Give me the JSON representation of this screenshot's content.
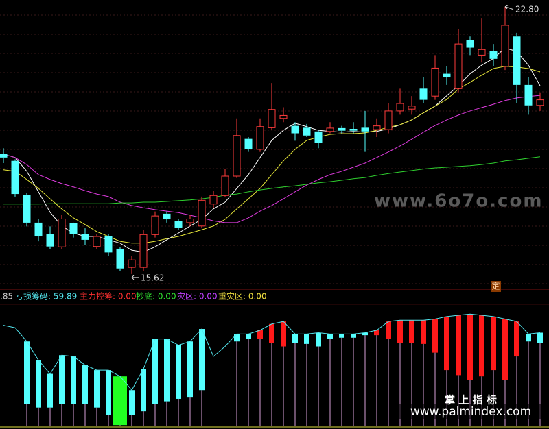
{
  "chart_data": [
    {
      "type": "candlestick",
      "categories": [
        null,
        null,
        null,
        null,
        null,
        null,
        null,
        null,
        null,
        null,
        null,
        null,
        null,
        null,
        null,
        null,
        null,
        null,
        null,
        null,
        null,
        null,
        null,
        null,
        null,
        null,
        null,
        null,
        null,
        null,
        null,
        null,
        null,
        null,
        null,
        null,
        null,
        null,
        null,
        null,
        null,
        null,
        null,
        null,
        null,
        null,
        null
      ],
      "open": [
        18.85,
        18.66,
        17.74,
        17.0,
        16.7,
        16.35,
        16.98,
        16.7,
        16.36,
        16.63,
        16.3,
        15.8,
        15.8,
        16.68,
        17.24,
        17.05,
        17.0,
        16.91,
        17.5,
        17.73,
        18.25,
        19.25,
        18.97,
        19.55,
        19.8,
        19.6,
        19.55,
        19.45,
        19.45,
        19.54,
        19.52,
        19.55,
        19.5,
        19.5,
        20.0,
        20.05,
        20.6,
        20.4,
        21.0,
        20.6,
        21.9,
        21.5,
        21.6,
        21.2,
        22.0,
        20.7,
        20.15
      ],
      "high": [
        19.0,
        18.7,
        17.8,
        17.1,
        16.9,
        17.2,
        17.0,
        16.85,
        16.7,
        16.7,
        16.35,
        16.1,
        16.8,
        17.3,
        17.3,
        17.1,
        17.2,
        17.7,
        17.85,
        18.45,
        19.8,
        19.3,
        19.8,
        20.75,
        20.1,
        19.7,
        19.65,
        19.5,
        19.7,
        19.6,
        19.7,
        20.0,
        19.8,
        20.2,
        20.6,
        20.4,
        20.9,
        21.5,
        21.2,
        22.2,
        22.0,
        22.5,
        21.8,
        22.8,
        22.1,
        20.9,
        20.5
      ],
      "low": [
        18.6,
        17.7,
        16.9,
        16.5,
        16.3,
        16.3,
        16.6,
        16.4,
        16.3,
        16.1,
        15.7,
        15.62,
        15.7,
        16.6,
        17.0,
        16.8,
        16.9,
        16.85,
        17.4,
        17.7,
        18.2,
        18.9,
        18.9,
        19.5,
        19.7,
        19.2,
        19.3,
        19.0,
        19.4,
        19.4,
        19.4,
        18.9,
        19.3,
        19.4,
        19.9,
        19.9,
        20.2,
        20.3,
        20.7,
        20.5,
        21.5,
        21.3,
        21.2,
        21.1,
        20.2,
        19.9,
        20.0
      ],
      "close": [
        18.75,
        17.77,
        17.0,
        16.63,
        16.36,
        17.1,
        16.7,
        16.54,
        16.63,
        16.2,
        15.77,
        16.0,
        16.68,
        17.18,
        17.09,
        16.87,
        17.1,
        17.6,
        17.73,
        18.25,
        19.34,
        18.97,
        19.58,
        20.04,
        19.88,
        19.4,
        19.34,
        19.15,
        19.54,
        19.47,
        19.47,
        19.45,
        19.6,
        20.0,
        20.2,
        20.13,
        20.3,
        21.15,
        20.9,
        21.8,
        21.7,
        21.65,
        21.4,
        22.3,
        20.7,
        20.15,
        20.3
      ],
      "up_color": "#ff3b3b",
      "down_color": "#54ffff",
      "series": [
        {
          "color": "#ffffff",
          "values": [
            18.84,
            18.75,
            18.38,
            17.83,
            17.28,
            16.91,
            16.72,
            16.63,
            16.63,
            16.54,
            16.45,
            16.26,
            16.21,
            16.35,
            16.54,
            16.72,
            16.91,
            17.09,
            17.37,
            17.55,
            17.92,
            18.29,
            18.75,
            19.21,
            19.48,
            19.67,
            19.58,
            19.48,
            19.45,
            19.43,
            19.45,
            19.43,
            19.45,
            19.52,
            19.63,
            19.76,
            19.95,
            20.13,
            20.41,
            20.68,
            21.0,
            21.23,
            21.41,
            21.69,
            21.6,
            21.23,
            20.68
          ]
        },
        {
          "color": "#e8e83a",
          "values": [
            18.42,
            18.38,
            18.16,
            17.92,
            17.64,
            17.37,
            17.13,
            16.95,
            16.76,
            16.63,
            16.5,
            16.45,
            16.45,
            16.5,
            16.57,
            16.63,
            16.72,
            16.81,
            16.91,
            17.09,
            17.37,
            17.64,
            17.92,
            18.29,
            18.66,
            18.97,
            19.21,
            19.3,
            19.37,
            19.39,
            19.39,
            19.41,
            19.48,
            19.56,
            19.63,
            19.76,
            19.95,
            20.13,
            20.31,
            20.59,
            20.77,
            20.96,
            21.14,
            21.2,
            21.18,
            21.14,
            21.05
          ]
        },
        {
          "color": "#e03ce0",
          "values": [
            18.84,
            18.75,
            18.56,
            18.29,
            18.16,
            18.05,
            17.96,
            17.86,
            17.77,
            17.7,
            17.55,
            17.46,
            17.4,
            17.35,
            17.31,
            17.27,
            17.2,
            17.13,
            17.05,
            17.0,
            17.0,
            17.13,
            17.31,
            17.46,
            17.64,
            17.83,
            18.01,
            18.16,
            18.29,
            18.38,
            18.49,
            18.6,
            18.75,
            18.9,
            19.06,
            19.24,
            19.43,
            19.61,
            19.76,
            19.89,
            20.0,
            20.09,
            20.18,
            20.28,
            20.35,
            20.39,
            20.42
          ]
        },
        {
          "color": "#2fd02f",
          "values": [
            17.5,
            17.5,
            17.5,
            17.5,
            17.51,
            17.51,
            17.51,
            17.51,
            17.51,
            17.51,
            17.53,
            17.53,
            17.55,
            17.55,
            17.57,
            17.59,
            17.61,
            17.64,
            17.68,
            17.74,
            17.77,
            17.83,
            17.88,
            17.92,
            17.96,
            17.99,
            18.03,
            18.07,
            18.1,
            18.14,
            18.18,
            18.21,
            18.27,
            18.32,
            18.36,
            18.4,
            18.44,
            18.47,
            18.49,
            18.51,
            18.53,
            18.56,
            18.6,
            18.66,
            18.69,
            18.73,
            18.77
          ]
        }
      ],
      "ylim": [
        15.25,
        22.98
      ],
      "high_label": "22.80",
      "low_label": "15.62"
    },
    {
      "type": "range-bar",
      "labels": [
        {
          "text": ".85",
          "color": "#c8c8c8"
        },
        {
          "text": "亏损筹码: 59.89",
          "color": "#54e8f0"
        },
        {
          "text": "主力控筹: 0.00",
          "color": "#ff3030"
        },
        {
          "text": "抄底: 0.00",
          "color": "#30e030"
        },
        {
          "text": "灾区: 0.00",
          "color": "#c040ff"
        },
        {
          "text": "重灾区: 0.00",
          "color": "#f0e040"
        }
      ],
      "line": {
        "color": "#54e8f0",
        "values": [
          81,
          79,
          68,
          53,
          42,
          57,
          56,
          49,
          45,
          45,
          40,
          29,
          46,
          70,
          70,
          65,
          68,
          78,
          56,
          64,
          74,
          74,
          77,
          82,
          84,
          74,
          74,
          75,
          74,
          74,
          74,
          75,
          77,
          84,
          85,
          85,
          85,
          86,
          88,
          89,
          90,
          89,
          88,
          86,
          84,
          74,
          75
        ]
      },
      "high": [
        null,
        null,
        68,
        53,
        42,
        57,
        56,
        49,
        45,
        45,
        40,
        29,
        46,
        70,
        70,
        65,
        68,
        78,
        null,
        null,
        74,
        74,
        77,
        82,
        84,
        74,
        74,
        75,
        74,
        74,
        74,
        75,
        77,
        84,
        85,
        85,
        85,
        86,
        88,
        89,
        90,
        89,
        88,
        86,
        84,
        74,
        75
      ],
      "low": [
        null,
        null,
        18,
        15,
        15,
        18,
        18,
        18,
        15,
        9,
        1,
        9,
        12,
        18,
        20,
        22,
        23,
        29,
        null,
        null,
        68,
        70,
        70,
        67,
        64,
        67,
        66,
        64,
        70,
        71,
        71,
        73,
        73,
        70,
        67,
        67,
        66,
        59,
        45,
        41,
        37,
        40,
        45,
        37,
        56,
        68,
        67
      ],
      "colors": [
        null,
        null,
        "#54ffff",
        "#54ffff",
        "#54ffff",
        "#54ffff",
        "#54ffff",
        "#54ffff",
        "#54ffff",
        "#54ffff",
        "#22ff22",
        "#54ffff",
        "#54ffff",
        "#54ffff",
        "#54ffff",
        "#54ffff",
        "#54ffff",
        "#54ffff",
        null,
        null,
        "#54ffff",
        "#54ffff",
        "#ff1a1a",
        "#ff1a1a",
        "#ff1a1a",
        "#54ffff",
        "#54ffff",
        "#54ffff",
        "#54ffff",
        "#54ffff",
        "#54ffff",
        "#54ffff",
        "#ff1a1a",
        "#ff1a1a",
        "#ff1a1a",
        "#ff1a1a",
        "#ff1a1a",
        "#ff1a1a",
        "#ff1a1a",
        "#ff1a1a",
        "#ff1a1a",
        "#ff1a1a",
        "#ff1a1a",
        "#ff1a1a",
        "#ff1a1a",
        "#54ffff",
        "#54ffff"
      ],
      "ylim": [
        0,
        100
      ]
    }
  ],
  "tag": "定",
  "watermarks": [
    "www.6o7o.com",
    "掌 上 指 标",
    "www.palmindex.com"
  ]
}
